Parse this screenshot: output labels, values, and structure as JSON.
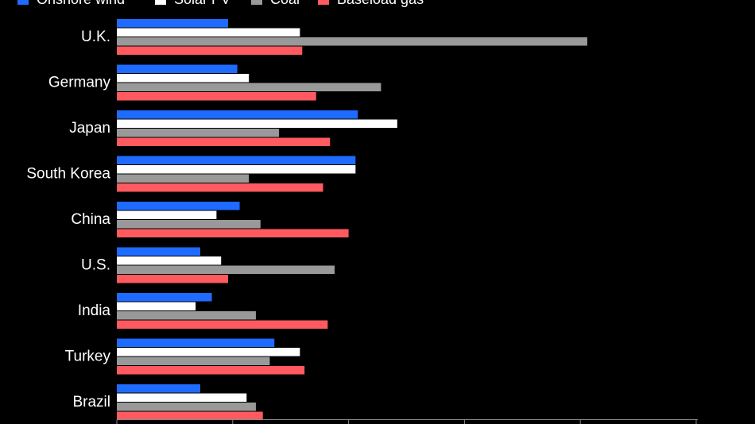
{
  "chart_data": {
    "type": "bar",
    "orientation": "horizontal",
    "categories": [
      "U.K.",
      "Germany",
      "Japan",
      "South Korea",
      "China",
      "U.S.",
      "India",
      "Turkey",
      "Brazil"
    ],
    "series": [
      {
        "name": "Onshore wind",
        "color": "#1f6bff",
        "values": [
          48,
          52,
          104,
          103,
          53,
          36,
          41,
          68,
          36
        ]
      },
      {
        "name": "Solar PV",
        "color": "#ffffff",
        "values": [
          79,
          57,
          121,
          103,
          43,
          45,
          34,
          79,
          56
        ]
      },
      {
        "name": "Coal",
        "color": "#999999",
        "values": [
          203,
          114,
          70,
          57,
          62,
          94,
          60,
          66,
          60
        ]
      },
      {
        "name": "Baseload gas",
        "color": "#ff5a5f",
        "values": [
          80,
          86,
          92,
          89,
          100,
          48,
          91,
          81,
          63
        ]
      }
    ],
    "xlim": [
      0,
      250
    ],
    "xticks": [
      0,
      50,
      100,
      150,
      200,
      250
    ],
    "legend_position": "top",
    "grid": false
  }
}
